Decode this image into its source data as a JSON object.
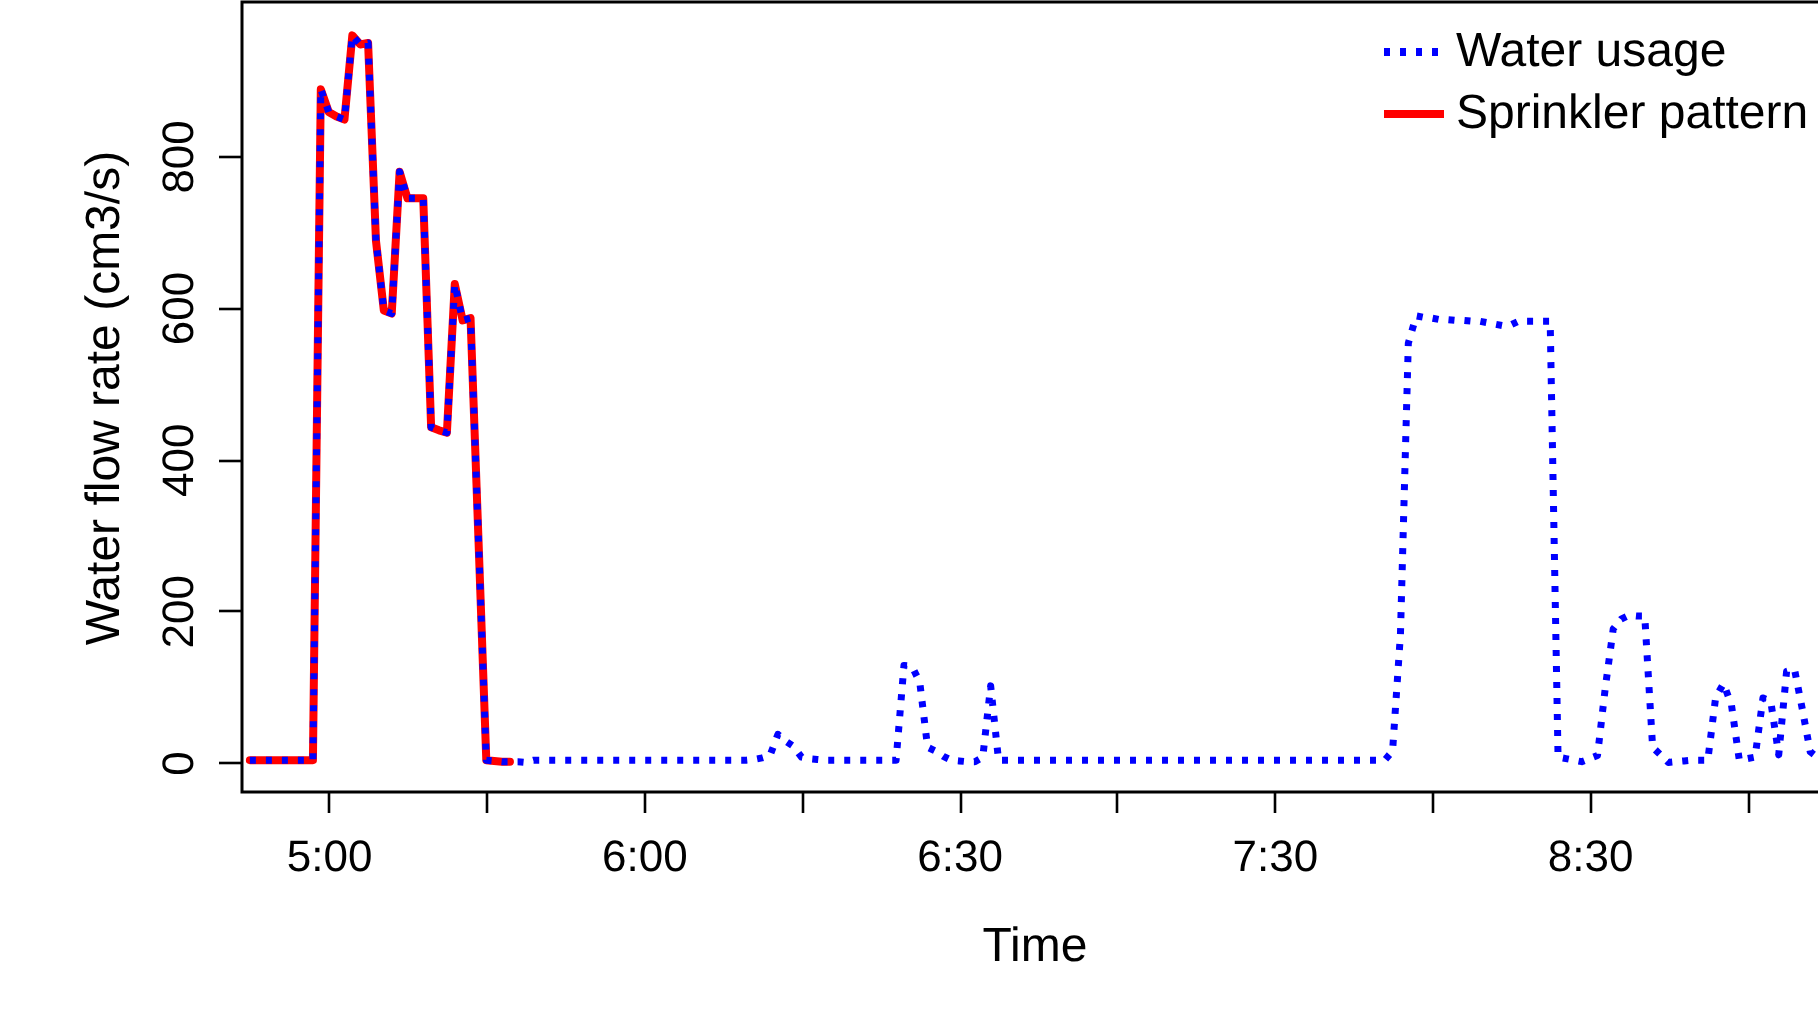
{
  "chart_data": {
    "type": "line",
    "xlabel": "Time",
    "ylabel": "Water flow rate (cm3/s)",
    "ylim": [
      -39,
      1003
    ],
    "yticks": [
      0,
      200,
      400,
      600,
      800
    ],
    "legend": "top right",
    "categories": [
      null,
      null,
      null,
      null,
      null,
      null,
      null,
      null,
      null,
      null,
      "5:00",
      null,
      null,
      null,
      null,
      null,
      null,
      null,
      null,
      null,
      null,
      null,
      null,
      null,
      null,
      null,
      null,
      null,
      null,
      null,
      null,
      null,
      null,
      null,
      null,
      null,
      null,
      null,
      null,
      null,
      null,
      null,
      null,
      null,
      null,
      null,
      null,
      null,
      null,
      null,
      "6:00",
      null,
      null,
      null,
      null,
      null,
      null,
      null,
      null,
      null,
      null,
      null,
      null,
      null,
      null,
      null,
      null,
      null,
      null,
      null,
      null,
      null,
      null,
      null,
      null,
      null,
      null,
      null,
      null,
      null,
      null,
      null,
      null,
      null,
      null,
      null,
      null,
      null,
      null,
      null,
      "6:30",
      null,
      null,
      null,
      null,
      null,
      null,
      null,
      null,
      null,
      null,
      null,
      null,
      null,
      null,
      null,
      null,
      null,
      null,
      null,
      null,
      null,
      null,
      null,
      null,
      null,
      null,
      null,
      null,
      null,
      null,
      null,
      null,
      null,
      null,
      null,
      null,
      null,
      null,
      null,
      "7:30",
      null,
      null,
      null,
      null,
      null,
      null,
      null,
      null,
      null,
      null,
      null,
      null,
      null,
      null,
      null,
      null,
      null,
      null,
      null,
      null,
      null,
      null,
      null,
      null,
      null,
      null,
      null,
      null,
      null,
      null,
      null,
      null,
      null,
      null,
      null,
      null,
      null,
      null,
      null,
      "8:30",
      null,
      null,
      null,
      null,
      null,
      null,
      null,
      null,
      null,
      null,
      null,
      null,
      null,
      null,
      null,
      null,
      null,
      null,
      null,
      null,
      null,
      null,
      null,
      null,
      null,
      null,
      null,
      null,
      null
    ],
    "series": [
      {
        "name": "Water usage",
        "color": "#0000ff",
        "line_style": "dotted",
        "values": [
          3,
          3,
          3,
          3,
          3,
          3,
          3,
          3,
          3,
          888,
          858,
          852,
          848,
          959,
          947,
          949,
          688,
          596,
          592,
          779,
          744,
          744,
          744,
          442,
          438,
          435,
          631,
          583,
          586,
          296,
          3,
          2,
          1,
          1,
          1,
          0,
          3,
          3,
          3,
          3,
          3,
          3,
          3,
          3,
          3,
          3,
          3,
          3,
          3,
          3,
          3,
          3,
          3,
          3,
          3,
          3,
          3,
          3,
          3,
          3,
          3,
          3,
          3,
          3,
          4,
          6,
          9,
          37,
          28,
          21,
          7,
          5,
          4,
          3,
          3,
          3,
          3,
          3,
          3,
          3,
          3,
          3,
          3,
          128,
          127,
          106,
          20,
          15,
          8,
          3,
          2,
          1,
          1,
          7,
          101,
          3,
          3,
          3,
          3,
          3,
          3,
          3,
          3,
          3,
          3,
          3,
          3,
          3,
          3,
          3,
          3,
          3,
          3,
          3,
          3,
          3,
          3,
          3,
          3,
          3,
          3,
          3,
          3,
          3,
          3,
          3,
          3,
          3,
          3,
          3,
          3,
          3,
          3,
          3,
          3,
          3,
          3,
          3,
          3,
          3,
          3,
          3,
          3,
          3,
          3,
          15,
          169,
          553,
          589,
          587,
          586,
          584,
          584,
          583,
          583,
          582,
          582,
          580,
          578,
          576,
          577,
          582,
          582,
          582,
          582,
          582,
          7,
          5,
          3,
          1,
          5,
          9,
          99,
          176,
          189,
          194,
          193,
          193,
          20,
          10,
          0,
          1,
          2,
          3,
          3,
          3,
          86,
          104,
          76,
          3,
          5,
          7,
          85,
          80,
          10,
          120,
          123,
          70,
          14,
          6
        ]
      },
      {
        "name": "Sprinkler pattern",
        "color": "#ff0000",
        "line_style": "solid",
        "values": [
          3,
          3,
          3,
          3,
          3,
          3,
          3,
          3,
          3,
          888,
          858,
          852,
          848,
          959,
          947,
          949,
          688,
          596,
          592,
          779,
          744,
          744,
          744,
          442,
          438,
          435,
          631,
          583,
          586,
          296,
          3,
          2,
          1,
          1,
          null,
          null,
          null,
          null,
          null,
          null,
          null,
          null,
          null,
          null,
          null,
          null,
          null,
          null,
          null,
          null,
          null,
          null,
          null,
          null,
          null,
          null,
          null,
          null,
          null,
          null,
          null,
          null,
          null,
          null,
          null,
          null,
          null,
          null,
          null,
          null,
          null,
          null,
          null,
          null,
          null,
          null,
          null,
          null,
          null,
          null,
          null,
          null,
          null,
          null,
          null,
          null,
          null,
          null,
          null,
          null,
          null,
          null,
          null,
          null,
          null,
          null,
          null,
          null,
          null,
          null,
          null,
          null,
          null,
          null,
          null,
          null,
          null,
          null,
          null,
          null,
          null,
          null,
          null,
          null,
          null,
          null,
          null,
          null,
          null,
          null,
          null,
          null,
          null,
          null,
          null,
          null,
          null,
          null,
          null,
          null,
          null,
          null,
          null,
          null,
          null,
          null,
          null,
          null,
          null,
          null,
          null,
          null,
          null,
          null,
          null,
          null,
          null,
          null,
          null,
          null,
          null,
          null,
          null,
          null,
          null,
          null,
          null,
          null,
          null,
          null,
          null,
          null,
          null,
          null,
          null,
          null,
          null,
          null,
          null,
          null,
          null,
          null,
          null,
          null,
          null,
          null,
          null,
          null,
          null,
          null,
          null,
          null,
          null,
          null,
          null,
          null,
          null,
          null,
          null,
          null,
          null,
          null,
          null,
          null,
          null,
          null,
          null,
          null,
          null,
          null
        ]
      }
    ]
  }
}
